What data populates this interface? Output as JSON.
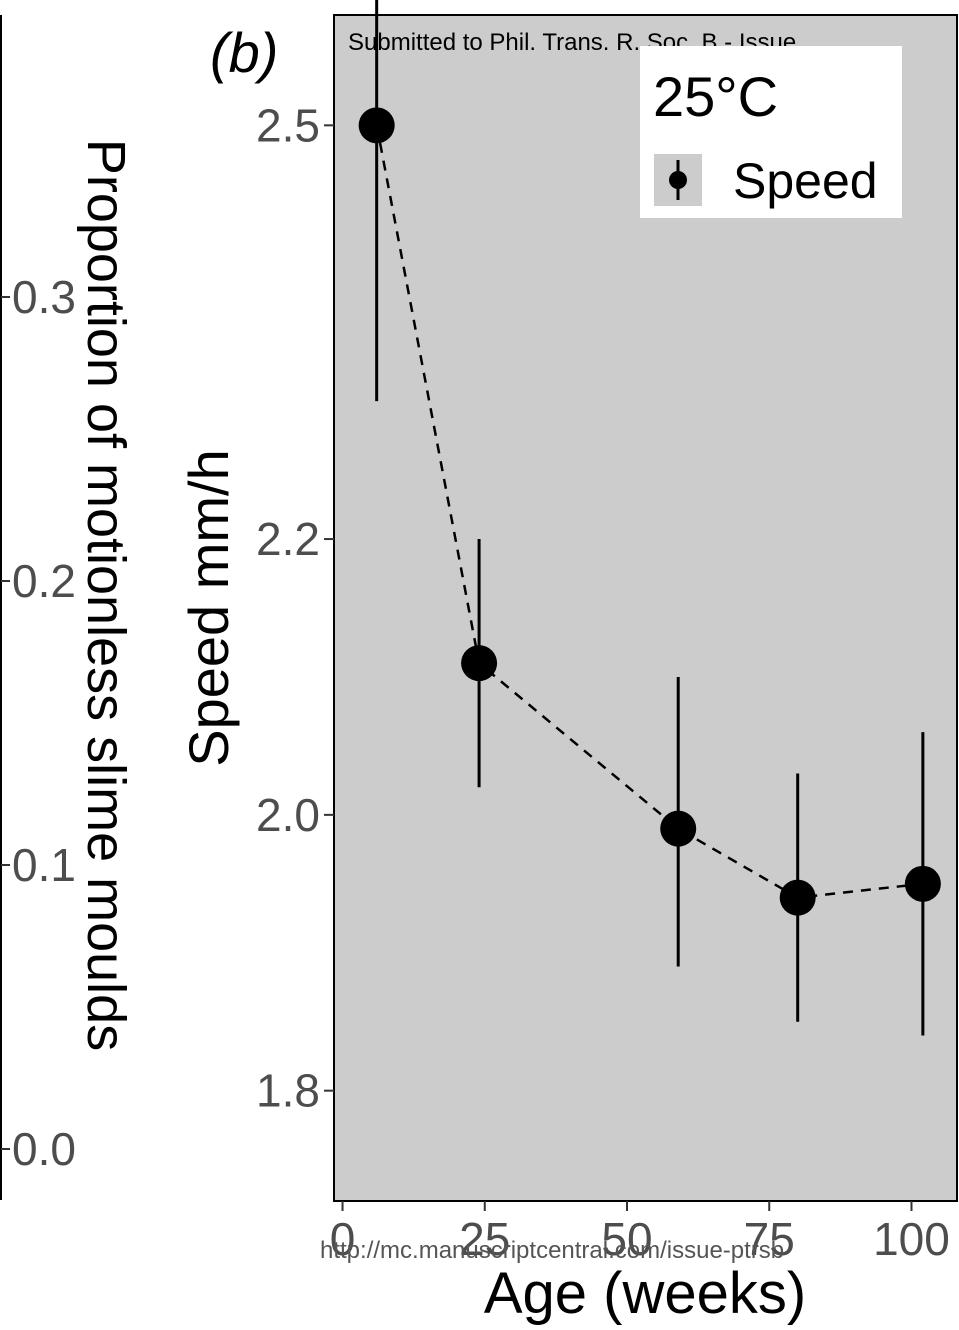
{
  "header_note": "Submitted to Phil. Trans. R. Soc. B - Issue",
  "footer_note": "http://mc.manuscriptcentral.com/issue-ptrsb",
  "panel_label": "(b)",
  "left_axis": {
    "title": "Proportion of motionless slime moulds",
    "ticks": [
      0.0,
      0.1,
      0.2,
      0.3
    ],
    "tick_labels": [
      "0.0",
      "0.1",
      "0.2",
      "0.3"
    ],
    "range": [
      0.0,
      0.37
    ]
  },
  "chart_data": {
    "type": "line",
    "title": "",
    "xlabel": "Age (weeks)",
    "ylabel": "Speed mm/h",
    "xlim": [
      -1.5,
      108
    ],
    "ylim": [
      1.72,
      2.58
    ],
    "x_ticks": [
      0,
      25,
      50,
      75,
      100
    ],
    "x_tick_labels": [
      "0",
      "25",
      "50",
      "75",
      "100"
    ],
    "y_ticks": [
      1.8,
      2.0,
      2.2,
      2.5
    ],
    "y_tick_labels": [
      "1.8",
      "2.0",
      "2.2",
      "2.5"
    ],
    "grid": false,
    "panel_background": "#cccccc",
    "legend": {
      "position": "top-right",
      "title": "25°C",
      "entries": [
        "Speed"
      ]
    },
    "series": [
      {
        "name": "Speed",
        "line_style": "dashed",
        "color": "#000000",
        "points": [
          {
            "x": 6,
            "y": 2.5,
            "lower": 2.3,
            "upper": 2.64
          },
          {
            "x": 24,
            "y": 2.11,
            "lower": 2.02,
            "upper": 2.2
          },
          {
            "x": 59,
            "y": 1.99,
            "lower": 1.89,
            "upper": 2.1
          },
          {
            "x": 80,
            "y": 1.94,
            "lower": 1.85,
            "upper": 2.03
          },
          {
            "x": 102,
            "y": 1.95,
            "lower": 1.84,
            "upper": 2.06
          }
        ]
      }
    ]
  }
}
